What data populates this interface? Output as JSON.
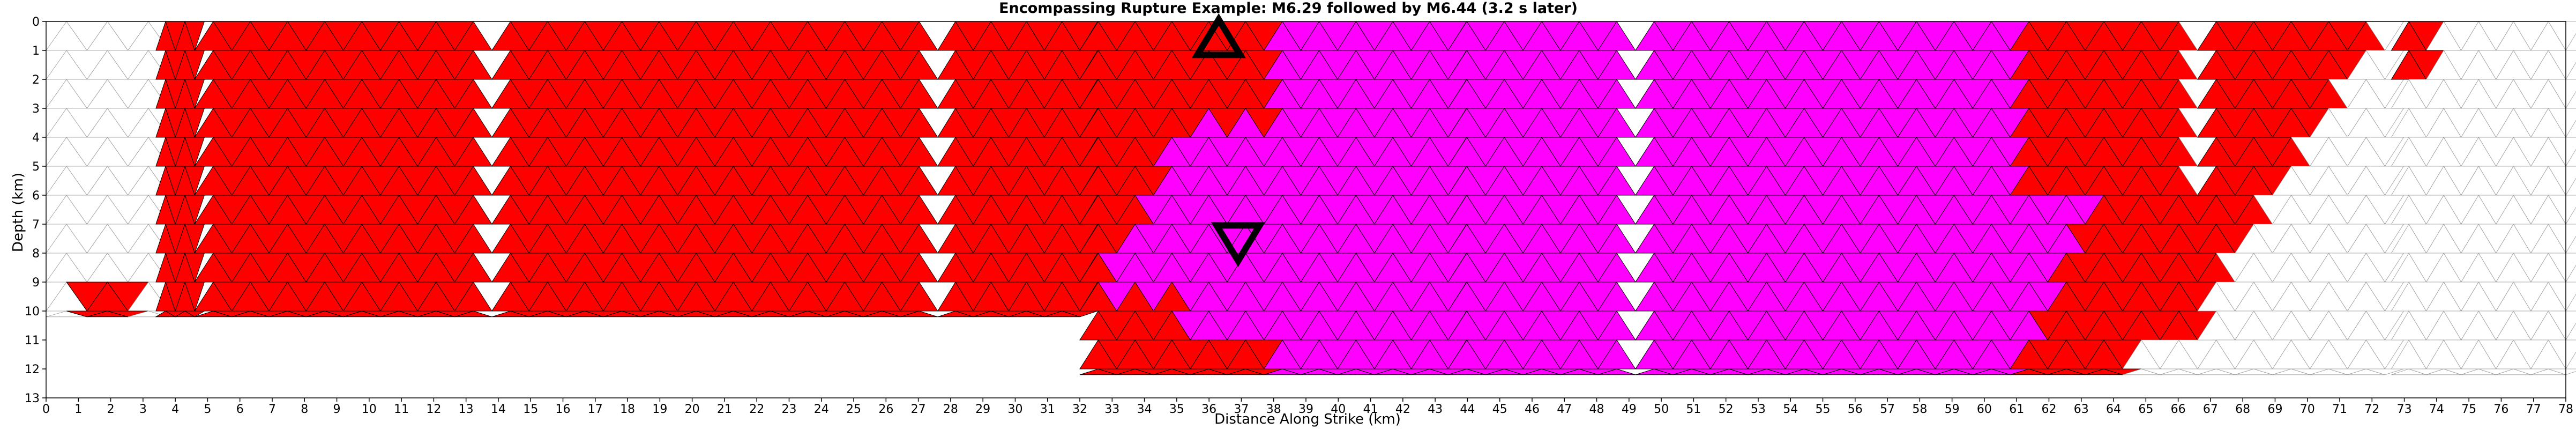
{
  "chart_data": {
    "type": "heatmap",
    "title": "Encompassing Rupture Example: M6.29 followed by M6.44 (3.2 s later)",
    "xlabel": "Distance Along Strike (km)",
    "ylabel": "Depth (km)",
    "xlim": [
      0,
      78
    ],
    "ylim": [
      0,
      13
    ],
    "y_inverted": true,
    "x_ticks": [
      0,
      1,
      2,
      3,
      4,
      5,
      6,
      7,
      8,
      9,
      10,
      11,
      12,
      13,
      14,
      15,
      16,
      17,
      18,
      19,
      20,
      21,
      22,
      23,
      24,
      25,
      26,
      27,
      28,
      29,
      30,
      31,
      32,
      33,
      34,
      35,
      36,
      37,
      38,
      39,
      40,
      41,
      42,
      43,
      44,
      45,
      46,
      47,
      48,
      49,
      50,
      51,
      52,
      53,
      54,
      55,
      56,
      57,
      58,
      59,
      60,
      61,
      62,
      63,
      64,
      65,
      66,
      67,
      68,
      69,
      70,
      71,
      72,
      73,
      74,
      75,
      76,
      77,
      78
    ],
    "y_ticks": [
      0,
      1,
      2,
      3,
      4,
      5,
      6,
      7,
      8,
      9,
      10,
      11,
      12,
      13
    ],
    "grid": false,
    "colors": {
      "first_rupture": "#ff0000",
      "second_rupture": "#ff00ff",
      "unruptured": "#ffffff",
      "mesh_line": "#000000",
      "unruptured_mesh_line": "#999999",
      "marker": "#000000"
    },
    "series": [
      {
        "color": "red",
        "description_of_extent": "sections 5-31 full depth 0-10.2 km; section 32-38 upper part depth 0-3.6 km plus deep patches; section 61-72 except lower-left",
        "x_ranges": [
          [
            5.0,
            9.0
          ],
          [
            9.6,
            13.6
          ],
          [
            14.1,
            18.1
          ],
          [
            18.7,
            22.7
          ],
          [
            23.2,
            27.3
          ],
          [
            27.8,
            31.8
          ],
          [
            32.3,
            37.6
          ],
          [
            61.0,
            66.8
          ],
          [
            66.8,
            72.6
          ],
          [
            73.1,
            73.9
          ],
          [
            3.4,
            4.6
          ],
          [
            1.0,
            2.6
          ]
        ]
      },
      {
        "color": "magenta",
        "description_of_extent": "sections 37-61 full depth 0-12.2 km; lower part of section 32-38; lower-left of section 61-66",
        "x_ranges": [
          [
            38.1,
            43.9
          ],
          [
            43.9,
            49.3
          ],
          [
            49.5,
            55.2
          ],
          [
            55.2,
            61.0
          ]
        ]
      }
    ],
    "markers": [
      {
        "shape": "triangle-up",
        "x": 36.3,
        "y": 0.6,
        "label_text": ""
      },
      {
        "shape": "triangle-down",
        "x": 36.9,
        "y": 7.6,
        "label_text": ""
      }
    ]
  }
}
